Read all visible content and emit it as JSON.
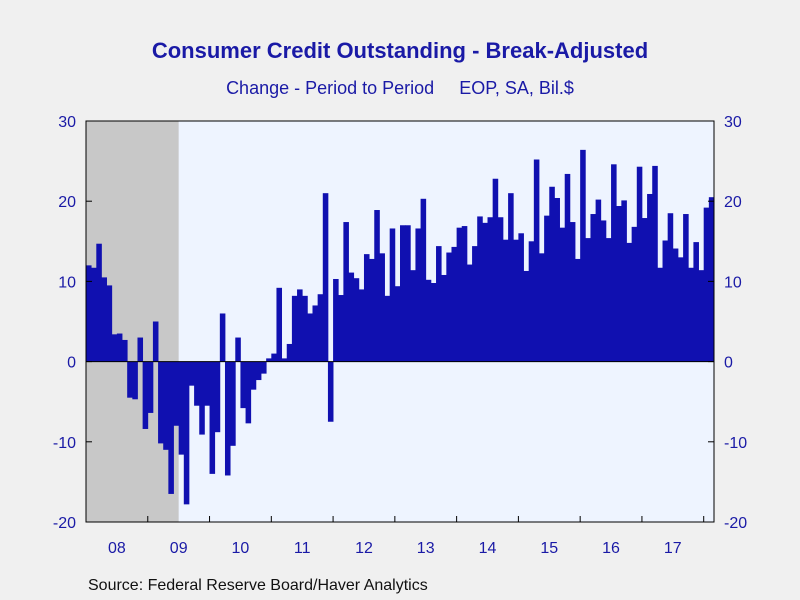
{
  "chart_data": {
    "type": "bar",
    "title": "Consumer Credit Outstanding - Break-Adjusted",
    "subtitle": "Change - Period to Period     EOP, SA, Bil.$",
    "source": "Source:  Federal Reserve Board/Haver Analytics",
    "frequency": "monthly",
    "start": "2008-01",
    "end": "2017-10",
    "ylim": [
      -20,
      30
    ],
    "y_ticks": [
      -20,
      -10,
      0,
      10,
      20,
      30
    ],
    "y_tick_labels": [
      "-20",
      "-10",
      "0",
      "10",
      "20",
      "30"
    ],
    "x_tick_labels": [
      "08",
      "09",
      "10",
      "11",
      "12",
      "13",
      "14",
      "15",
      "16",
      "17"
    ],
    "recession": {
      "start": "2008-01",
      "end": "2009-06"
    },
    "grid": false,
    "legend": "none",
    "colors": {
      "bars": "#1010b0",
      "plot_background": "#eef4ff",
      "recession_shade": "#c8c8c8",
      "text": "#1a1aa6",
      "page_background": "#f0f0f0"
    },
    "values": [
      12.0,
      11.7,
      14.7,
      10.5,
      9.5,
      3.4,
      3.5,
      2.7,
      -4.5,
      -4.7,
      3.0,
      -8.4,
      -6.4,
      5.0,
      -10.2,
      -11.0,
      -16.5,
      -8.0,
      -11.6,
      -17.8,
      -3.0,
      -5.5,
      -9.1,
      -5.5,
      -14.0,
      -8.8,
      6.0,
      -14.2,
      -10.5,
      3.0,
      -5.8,
      -7.7,
      -3.5,
      -2.3,
      -1.5,
      0.4,
      1.0,
      9.2,
      0.4,
      2.2,
      8.2,
      9.0,
      8.2,
      6.0,
      7.0,
      8.4,
      21.0,
      -7.5,
      10.3,
      8.3,
      17.4,
      11.1,
      10.4,
      9.0,
      13.4,
      12.8,
      18.9,
      13.5,
      8.2,
      16.6,
      9.4,
      17.0,
      17.0,
      11.4,
      16.6,
      20.3,
      10.2,
      9.8,
      14.4,
      10.8,
      13.6,
      14.3,
      16.7,
      16.9,
      12.1,
      14.4,
      18.1,
      17.3,
      18.0,
      22.8,
      18.0,
      15.2,
      21.0,
      15.2,
      16.0,
      11.3,
      15.0,
      25.2,
      13.5,
      18.2,
      21.8,
      20.4,
      16.7,
      23.4,
      17.4,
      12.8,
      26.4,
      15.4,
      18.4,
      20.2,
      17.6,
      15.4,
      24.6,
      19.4,
      20.1,
      14.8,
      16.8,
      24.3,
      17.9,
      20.9,
      24.4,
      11.7,
      15.1,
      18.5,
      14.1,
      13.0,
      18.4,
      11.7,
      14.9,
      11.4,
      19.2,
      20.5
    ]
  }
}
